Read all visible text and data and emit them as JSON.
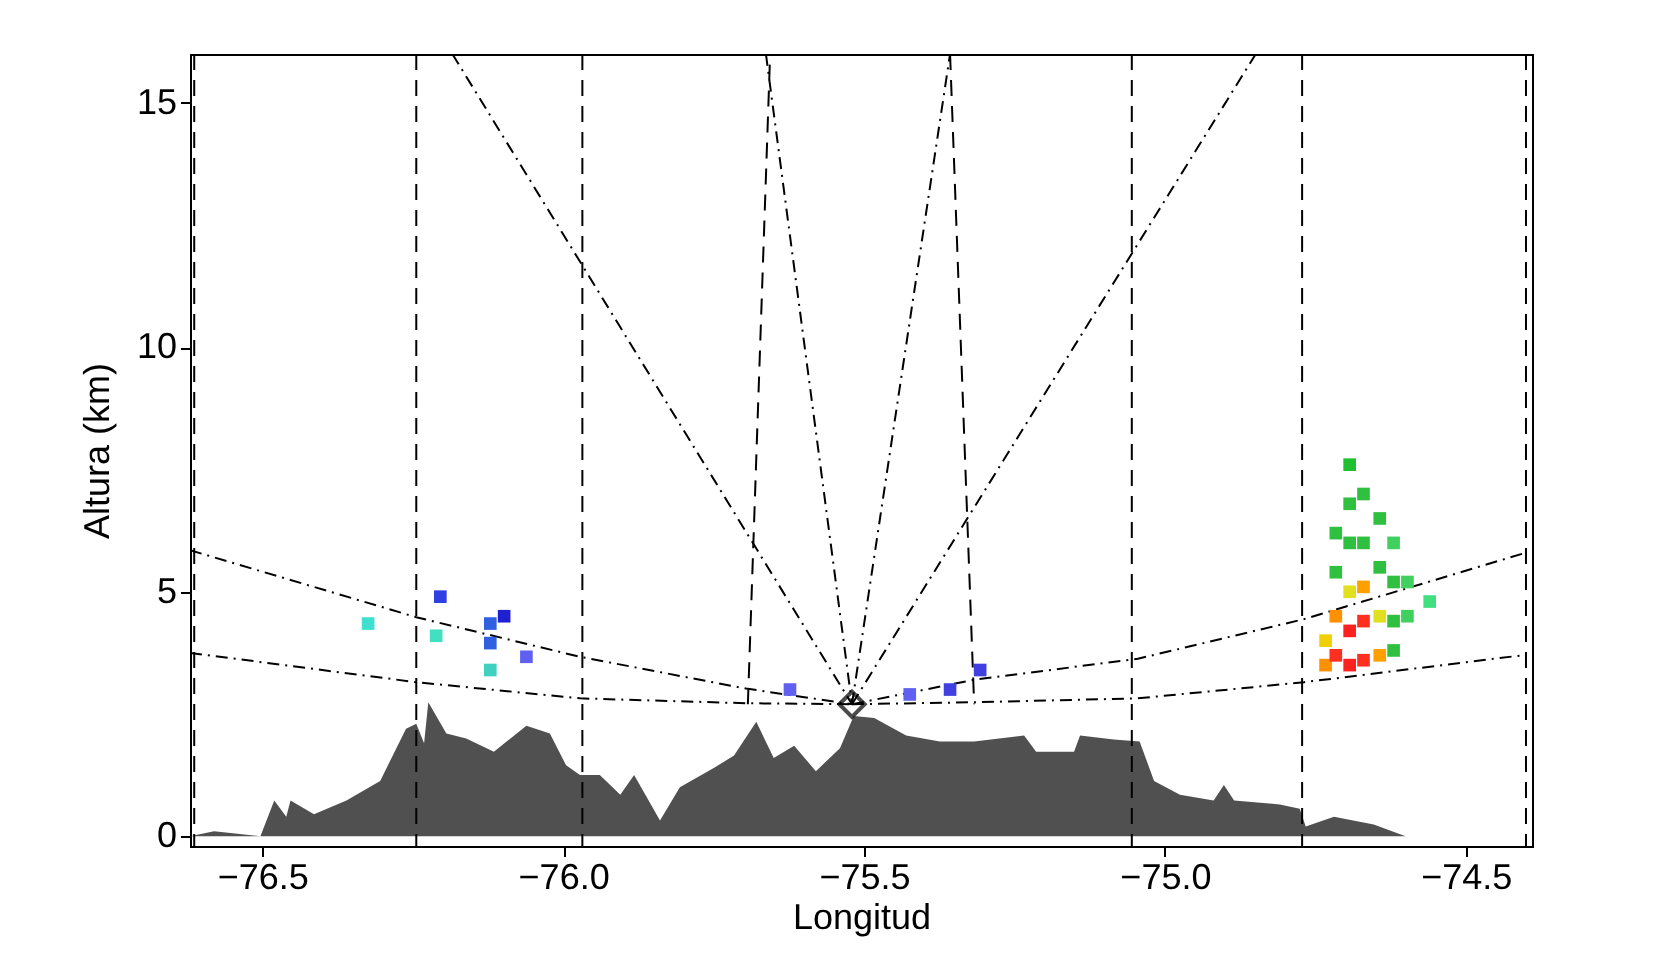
{
  "chart_data": {
    "type": "line",
    "xlabel": "Longitud",
    "ylabel": "Altura (km)",
    "xlim": [
      -76.62,
      -74.39
    ],
    "ylim": [
      -0.2,
      16
    ],
    "xticks": [
      {
        "value": -76.5,
        "label": "−76.5"
      },
      {
        "value": -76,
        "label": "−76.0"
      },
      {
        "value": -75.5,
        "label": "−75.5"
      },
      {
        "value": -75,
        "label": "−75.0"
      },
      {
        "value": -74.5,
        "label": "−74.5"
      }
    ],
    "yticks": [
      0,
      5,
      10,
      15
    ],
    "grid": false,
    "ref_lines": [
      {
        "axis": "x",
        "value": -76.613,
        "color": "#000000",
        "line_style": "dashed"
      },
      {
        "axis": "x",
        "value": -76.244,
        "color": "#000000",
        "line_style": "dashed"
      },
      {
        "axis": "x",
        "value": -75.968,
        "color": "#000000",
        "line_style": "dashed"
      },
      {
        "axis": "x",
        "value": -75.055,
        "color": "#000000",
        "line_style": "dashed"
      },
      {
        "axis": "x",
        "value": -74.772,
        "color": "#000000",
        "line_style": "dashed"
      },
      {
        "axis": "x",
        "value": -74.4,
        "color": "#000000",
        "line_style": "dashed"
      }
    ],
    "series": [
      {
        "type": "area",
        "color": "#505050",
        "x": [
          -76.62,
          -76.58,
          -76.503,
          -76.48,
          -76.46,
          -76.453,
          -76.414,
          -76.36,
          -76.304,
          -76.261,
          -76.244,
          -76.231,
          -76.224,
          -76.194,
          -76.161,
          -76.115,
          -76.061,
          -76.022,
          -75.995,
          -75.972,
          -75.939,
          -75.905,
          -75.882,
          -75.839,
          -75.806,
          -75.749,
          -75.716,
          -75.679,
          -75.65,
          -75.616,
          -75.58,
          -75.54,
          -75.517,
          -75.483,
          -75.43,
          -75.374,
          -75.317,
          -75.234,
          -75.214,
          -75.151,
          -75.141,
          -75.085,
          -75.042,
          -75.018,
          -74.975,
          -74.919,
          -74.902,
          -74.885,
          -74.809,
          -74.776,
          -74.766,
          -74.719,
          -74.653,
          -74.6,
          -74.487,
          -74.4
        ],
        "values": [
          0,
          0.1,
          0,
          0.73,
          0.4,
          0.73,
          0.45,
          0.73,
          1.13,
          2.2,
          2.3,
          1.9,
          2.74,
          2.1,
          2.0,
          1.73,
          2.26,
          2.1,
          1.45,
          1.25,
          1.25,
          0.85,
          1.25,
          0.32,
          1.0,
          1.4,
          1.65,
          2.34,
          1.6,
          1.85,
          1.33,
          1.8,
          2.46,
          2.42,
          2.06,
          1.94,
          1.94,
          2.06,
          1.73,
          1.73,
          2.06,
          1.98,
          1.94,
          1.13,
          0.85,
          0.73,
          1.05,
          0.73,
          0.65,
          0.56,
          0.2,
          0.4,
          0.24,
          0,
          0,
          0
        ]
      },
      {
        "type": "line",
        "color": "#000000",
        "line_style": "dashed",
        "x": [
          -75.693,
          -75.656
        ],
        "values": [
          2.7,
          16
        ]
      },
      {
        "type": "line",
        "color": "#000000",
        "line_style": "dashed",
        "x": [
          -75.317,
          -75.357
        ],
        "values": [
          2.7,
          16
        ]
      },
      {
        "type": "line",
        "color": "#000000",
        "line_style": "dotted",
        "x": [
          -75.52,
          -76.184
        ],
        "values": [
          2.7,
          16
        ]
      },
      {
        "type": "line",
        "color": "#000000",
        "line_style": "dotted",
        "x": [
          -75.52,
          -75.663
        ],
        "values": [
          2.7,
          16
        ]
      },
      {
        "type": "line",
        "color": "#000000",
        "line_style": "dotted",
        "x": [
          -75.52,
          -75.357
        ],
        "values": [
          2.7,
          16
        ]
      },
      {
        "type": "line",
        "color": "#000000",
        "line_style": "dotted",
        "x": [
          -75.52,
          -74.849
        ],
        "values": [
          2.7,
          16
        ]
      },
      {
        "type": "line",
        "color": "#000000",
        "line_style": "dotted",
        "x": [
          -76.62,
          -76.244,
          -75.972,
          -75.696,
          -75.52
        ],
        "values": [
          5.85,
          4.48,
          3.67,
          3.02,
          2.7
        ]
      },
      {
        "type": "line",
        "color": "#000000",
        "line_style": "dotted",
        "x": [
          -76.62,
          -76.244,
          -75.972,
          -75.696,
          -75.52
        ],
        "values": [
          3.75,
          3.15,
          2.82,
          2.72,
          2.7
        ]
      },
      {
        "type": "line",
        "color": "#000000",
        "line_style": "dotted",
        "x": [
          -75.52,
          -75.317,
          -75.045,
          -74.769,
          -74.4
        ],
        "values": [
          2.7,
          3.2,
          3.63,
          4.44,
          5.8
        ]
      },
      {
        "type": "line",
        "color": "#000000",
        "line_style": "dotted",
        "x": [
          -75.52,
          -75.317,
          -75.045,
          -74.769,
          -74.4
        ],
        "values": [
          2.7,
          2.74,
          2.82,
          3.15,
          3.71
        ]
      },
      {
        "type": "scatter",
        "marker": "square",
        "x": [
          -74.733,
          -74.733,
          -74.716,
          -74.716,
          -74.716,
          -74.716,
          -74.693,
          -74.693,
          -74.693,
          -74.693,
          -74.693,
          -74.693,
          -74.67,
          -74.67,
          -74.67,
          -74.67,
          -74.67,
          -74.643,
          -74.643,
          -74.643,
          -74.643,
          -74.62,
          -74.62,
          -74.62,
          -74.62,
          -74.597,
          -74.597,
          -74.56,
          -76.324,
          -76.204,
          -76.211,
          -76.121,
          -76.121,
          -76.098,
          -76.121,
          -76.061,
          -75.623,
          -75.424,
          -75.357,
          -75.307
        ],
        "values": [
          4.0,
          3.5,
          6.2,
          5.4,
          4.5,
          3.7,
          7.6,
          6.8,
          6.0,
          5.0,
          4.2,
          3.5,
          7.0,
          6.0,
          5.1,
          4.4,
          3.6,
          6.5,
          5.5,
          4.5,
          3.7,
          6.0,
          5.2,
          4.4,
          3.8,
          5.2,
          4.5,
          4.8,
          4.35,
          4.9,
          4.1,
          3.95,
          4.35,
          4.5,
          3.4,
          3.67,
          3.0,
          2.9,
          3.0,
          3.4
        ],
        "colors": [
          "#f0d000",
          "#ff9000",
          "#30c040",
          "#30c040",
          "#ff9000",
          "#ff3020",
          "#20c030",
          "#30c040",
          "#30c040",
          "#e0e020",
          "#ff2020",
          "#ff2020",
          "#30c040",
          "#30c040",
          "#ffa000",
          "#ff3020",
          "#ff3020",
          "#30c040",
          "#30c040",
          "#e0e020",
          "#ffa000",
          "#40d060",
          "#30c040",
          "#30c040",
          "#30c040",
          "#40d060",
          "#40d060",
          "#40e080",
          "#40e0d0",
          "#3040e0",
          "#40e0c0",
          "#3060e0",
          "#3060e0",
          "#2020d0",
          "#40d0c0",
          "#6060f0",
          "#6060f0",
          "#6060f0",
          "#4040e0",
          "#4040e0"
        ]
      },
      {
        "type": "scatter",
        "marker": "diamond",
        "color": "#000000",
        "x": [
          -75.52
        ],
        "values": [
          2.7
        ]
      }
    ]
  }
}
